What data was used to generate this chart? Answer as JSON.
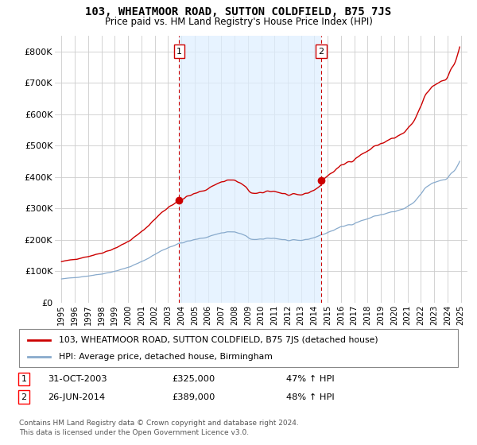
{
  "title": "103, WHEATMOOR ROAD, SUTTON COLDFIELD, B75 7JS",
  "subtitle": "Price paid vs. HM Land Registry's House Price Index (HPI)",
  "legend_line1": "103, WHEATMOOR ROAD, SUTTON COLDFIELD, B75 7JS (detached house)",
  "legend_line2": "HPI: Average price, detached house, Birmingham",
  "footnote_line1": "Contains HM Land Registry data © Crown copyright and database right 2024.",
  "footnote_line2": "This data is licensed under the Open Government Licence v3.0.",
  "t1_label": "1",
  "t1_date": "31-OCT-2003",
  "t1_price": "£325,000",
  "t1_change": "47% ↑ HPI",
  "t2_label": "2",
  "t2_date": "26-JUN-2014",
  "t2_price": "£389,000",
  "t2_change": "48% ↑ HPI",
  "price_color": "#cc0000",
  "hpi_color": "#88aacc",
  "shade_color": "#ddeeff",
  "marker1_x": 2003.833,
  "marker1_y": 325000,
  "marker2_x": 2014.5,
  "marker2_y": 389000,
  "ylim": [
    0,
    850000
  ],
  "xlim_start": 1994.5,
  "xlim_end": 2025.5,
  "yticks": [
    0,
    100000,
    200000,
    300000,
    400000,
    500000,
    600000,
    700000,
    800000
  ],
  "ytick_labels": [
    "£0",
    "£100K",
    "£200K",
    "£300K",
    "£400K",
    "£500K",
    "£600K",
    "£700K",
    "£800K"
  ],
  "xtick_years": [
    1995,
    1996,
    1997,
    1998,
    1999,
    2000,
    2001,
    2002,
    2003,
    2004,
    2005,
    2006,
    2007,
    2008,
    2009,
    2010,
    2011,
    2012,
    2013,
    2014,
    2015,
    2016,
    2017,
    2018,
    2019,
    2020,
    2021,
    2022,
    2023,
    2024,
    2025
  ]
}
